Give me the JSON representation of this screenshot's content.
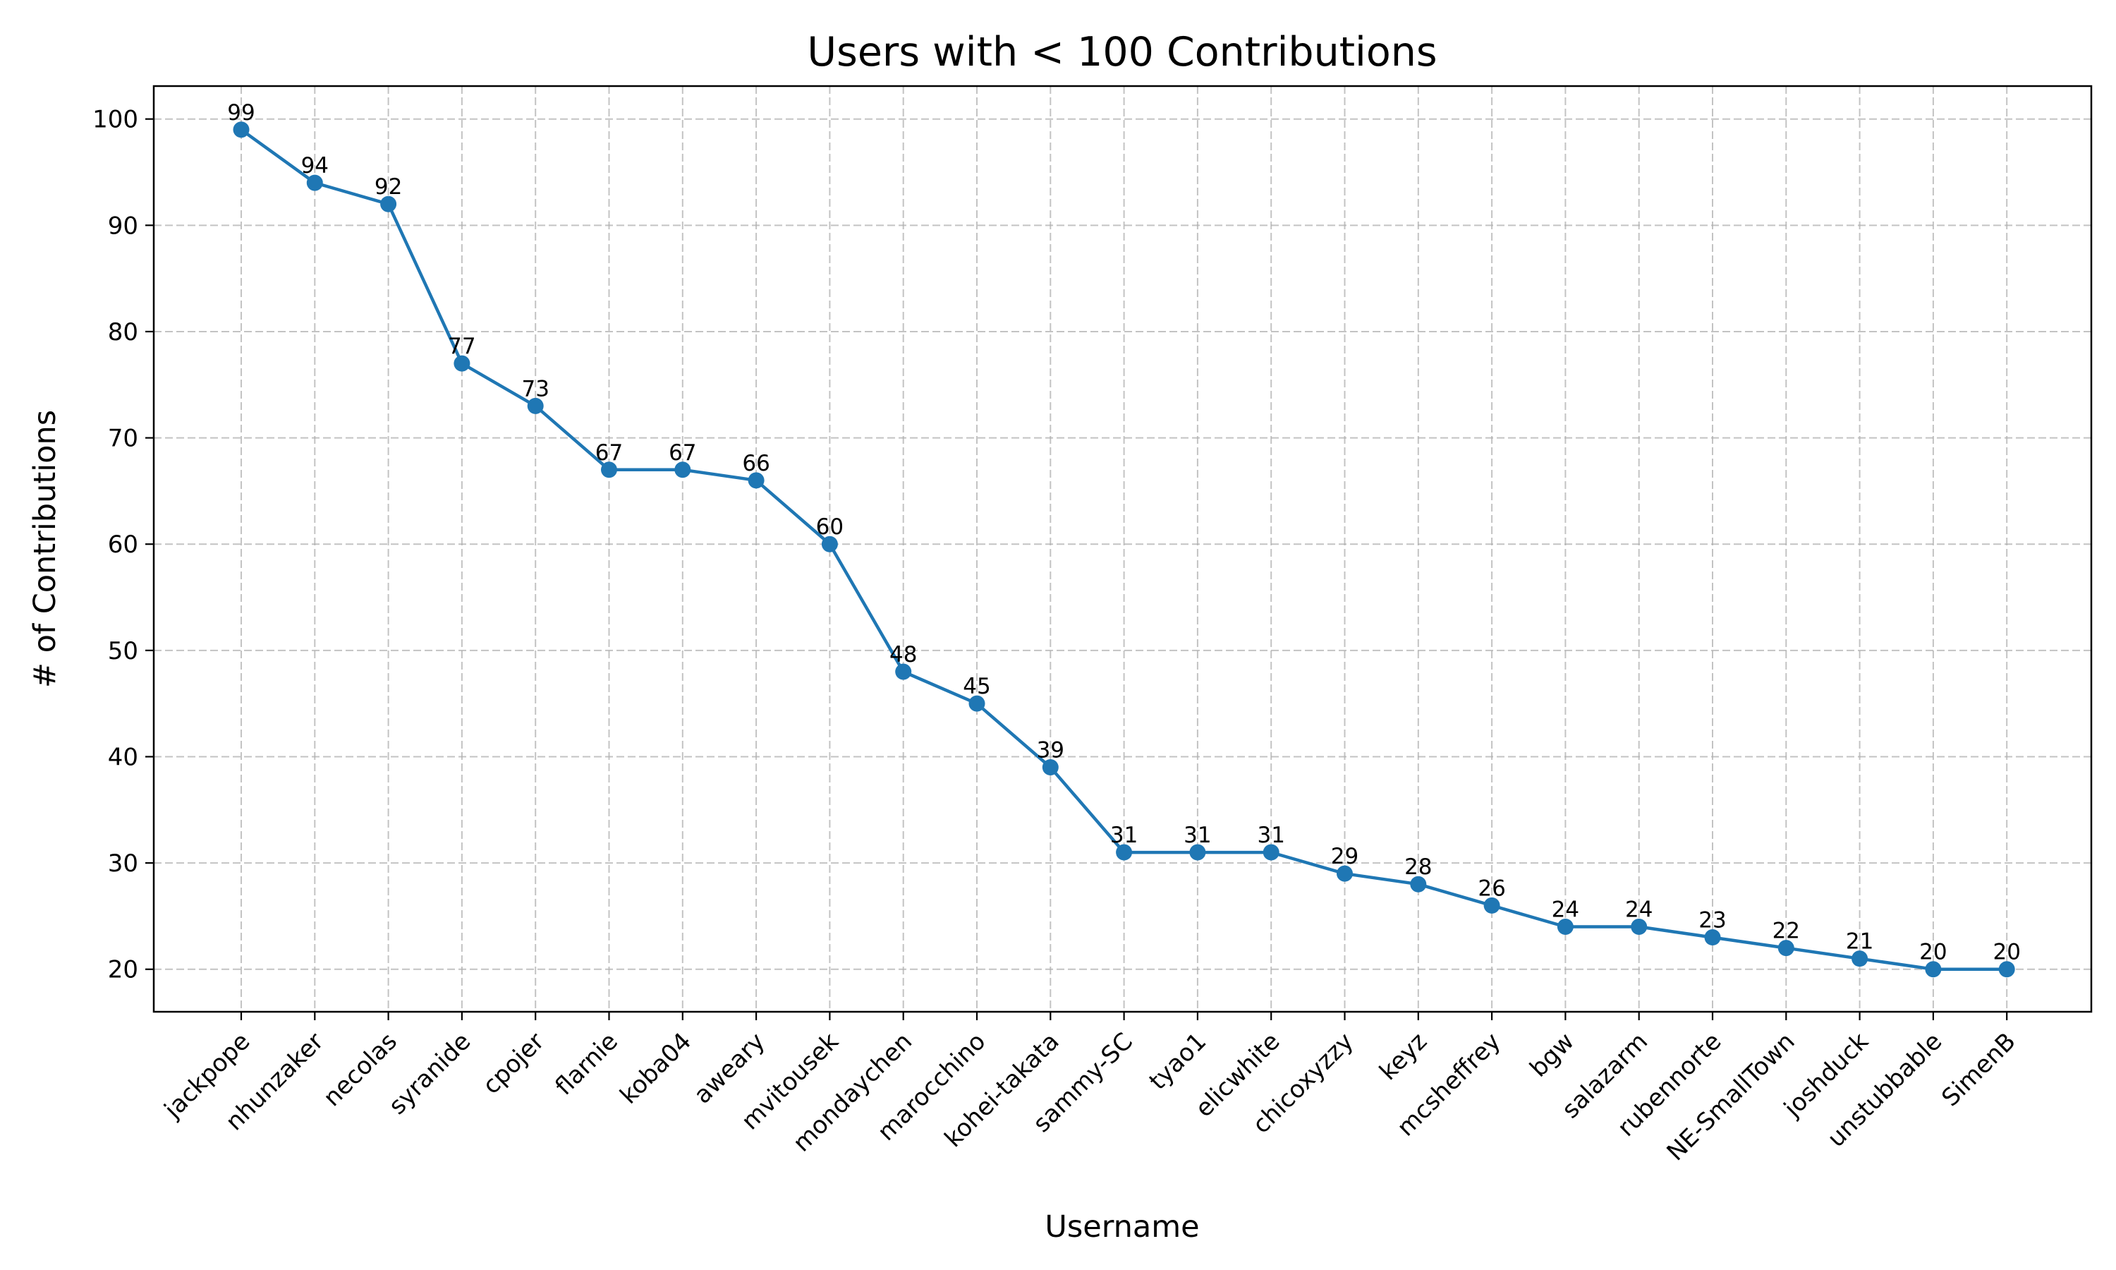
{
  "chart_data": {
    "type": "line",
    "title": "Users with < 100 Contributions",
    "xlabel": "Username",
    "ylabel": "# of Contributions",
    "ylim": [
      16,
      103.1
    ],
    "yticks": [
      20,
      30,
      40,
      50,
      60,
      70,
      80,
      90,
      100
    ],
    "grid": true,
    "color": "#1f77b4",
    "categories": [
      "jackpope",
      "nhunzaker",
      "necolas",
      "syranide",
      "cpojer",
      "flarnie",
      "koba04",
      "aweary",
      "mvitousek",
      "mondaychen",
      "marocchino",
      "kohei-takata",
      "sammy-SC",
      "tyao1",
      "elicwhite",
      "chicoxyzzy",
      "keyz",
      "mcsheffrey",
      "bgw",
      "salazarm",
      "rubennorte",
      "NE-SmallTown",
      "joshduck",
      "unstubbable",
      "SimenB"
    ],
    "values": [
      99,
      94,
      92,
      77,
      73,
      67,
      67,
      66,
      60,
      48,
      45,
      39,
      31,
      31,
      31,
      29,
      28,
      26,
      24,
      24,
      23,
      22,
      21,
      20,
      20
    ]
  }
}
